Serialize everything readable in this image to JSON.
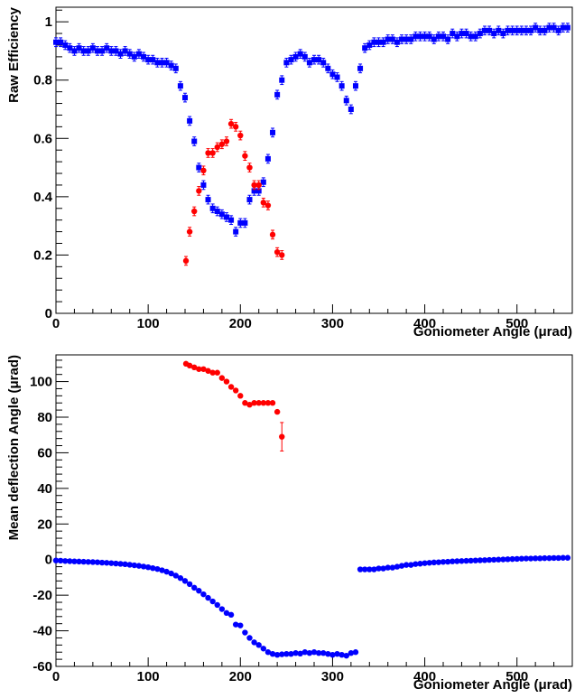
{
  "chart_data": [
    {
      "type": "scatter",
      "xlabel": "Goniometer Angle (μrad)",
      "ylabel": "Raw Efficiency",
      "xlim": [
        0,
        560
      ],
      "ylim": [
        0,
        1.05
      ],
      "xticks": [
        0,
        100,
        200,
        300,
        400,
        500
      ],
      "yticks": [
        0,
        0.2,
        0.4,
        0.6,
        0.8,
        1
      ],
      "ytick_labels": [
        "0",
        "0.2",
        "0.4",
        "0.6",
        "0.8",
        "1"
      ],
      "series": [
        {
          "color": "#0000ff",
          "marker": "square",
          "error_bar": 0.015,
          "x": [
            0,
            5,
            10,
            15,
            20,
            25,
            30,
            35,
            40,
            45,
            50,
            55,
            60,
            65,
            70,
            75,
            80,
            85,
            90,
            95,
            100,
            105,
            110,
            115,
            120,
            125,
            130,
            135,
            140,
            145,
            150,
            155,
            160,
            165,
            170,
            175,
            180,
            185,
            190,
            195,
            200,
            205,
            210,
            215,
            220,
            225,
            230,
            235,
            240,
            245,
            250,
            255,
            260,
            265,
            270,
            275,
            280,
            285,
            290,
            295,
            300,
            305,
            310,
            315,
            320,
            325,
            330,
            335,
            340,
            345,
            350,
            355,
            360,
            365,
            370,
            375,
            380,
            385,
            390,
            395,
            400,
            405,
            410,
            415,
            420,
            425,
            430,
            435,
            440,
            445,
            450,
            455,
            460,
            465,
            470,
            475,
            480,
            485,
            490,
            495,
            500,
            505,
            510,
            515,
            520,
            525,
            530,
            535,
            540,
            545,
            550,
            555
          ],
          "y": [
            0.93,
            0.93,
            0.92,
            0.91,
            0.9,
            0.91,
            0.9,
            0.9,
            0.91,
            0.9,
            0.9,
            0.91,
            0.9,
            0.9,
            0.89,
            0.9,
            0.89,
            0.88,
            0.89,
            0.88,
            0.87,
            0.87,
            0.86,
            0.86,
            0.86,
            0.85,
            0.84,
            0.78,
            0.74,
            0.66,
            0.59,
            0.5,
            0.44,
            0.39,
            0.36,
            0.35,
            0.34,
            0.33,
            0.32,
            0.28,
            0.31,
            0.31,
            0.39,
            0.42,
            0.42,
            0.45,
            0.53,
            0.62,
            0.75,
            0.8,
            0.86,
            0.87,
            0.88,
            0.89,
            0.88,
            0.86,
            0.87,
            0.87,
            0.86,
            0.84,
            0.82,
            0.81,
            0.78,
            0.73,
            0.7,
            0.78,
            0.84,
            0.91,
            0.92,
            0.93,
            0.93,
            0.93,
            0.94,
            0.94,
            0.93,
            0.94,
            0.94,
            0.94,
            0.95,
            0.95,
            0.95,
            0.95,
            0.94,
            0.95,
            0.95,
            0.94,
            0.96,
            0.95,
            0.96,
            0.96,
            0.95,
            0.95,
            0.96,
            0.97,
            0.97,
            0.96,
            0.97,
            0.96,
            0.97,
            0.97,
            0.97,
            0.97,
            0.97,
            0.97,
            0.98,
            0.97,
            0.97,
            0.98,
            0.98,
            0.97,
            0.98,
            0.98
          ]
        },
        {
          "color": "#ff0000",
          "marker": "circle",
          "error_bar": 0.015,
          "x": [
            141,
            145,
            150,
            155,
            160,
            165,
            170,
            175,
            180,
            185,
            190,
            195,
            200,
            205,
            210,
            215,
            220,
            225,
            230,
            235,
            240,
            245
          ],
          "y": [
            0.18,
            0.28,
            0.35,
            0.42,
            0.49,
            0.55,
            0.55,
            0.57,
            0.58,
            0.59,
            0.65,
            0.64,
            0.61,
            0.54,
            0.5,
            0.44,
            0.44,
            0.38,
            0.37,
            0.27,
            0.21,
            0.2
          ]
        }
      ]
    },
    {
      "type": "scatter",
      "xlabel": "Goniometer Angle (μrad)",
      "ylabel": "Mean deflection Angle (μrad)",
      "xlim": [
        0,
        560
      ],
      "ylim": [
        -60,
        115
      ],
      "xticks": [
        0,
        100,
        200,
        300,
        400,
        500
      ],
      "yticks": [
        -60,
        -40,
        -20,
        0,
        20,
        40,
        60,
        80,
        100
      ],
      "ytick_labels": [
        "-60",
        "-40",
        "-20",
        "0",
        "20",
        "40",
        "60",
        "80",
        "100"
      ],
      "series": [
        {
          "color": "#0000ff",
          "marker": "circle",
          "x": [
            0,
            5,
            10,
            15,
            20,
            25,
            30,
            35,
            40,
            45,
            50,
            55,
            60,
            65,
            70,
            75,
            80,
            85,
            90,
            95,
            100,
            105,
            110,
            115,
            120,
            125,
            130,
            135,
            140,
            145,
            150,
            155,
            160,
            165,
            170,
            175,
            180,
            185,
            190,
            195,
            200,
            205,
            210,
            215,
            220,
            225,
            230,
            235,
            240,
            245,
            250,
            255,
            260,
            265,
            270,
            275,
            280,
            285,
            290,
            295,
            300,
            305,
            310,
            315,
            320,
            325,
            330,
            335,
            340,
            345,
            350,
            355,
            360,
            365,
            370,
            375,
            380,
            385,
            390,
            395,
            400,
            405,
            410,
            415,
            420,
            425,
            430,
            435,
            440,
            445,
            450,
            455,
            460,
            465,
            470,
            475,
            480,
            485,
            490,
            495,
            500,
            505,
            510,
            515,
            520,
            525,
            530,
            535,
            540,
            545,
            550,
            555
          ],
          "y": [
            -0.5,
            -0.6,
            -0.8,
            -0.9,
            -1.0,
            -1.1,
            -1.2,
            -1.3,
            -1.4,
            -1.5,
            -1.7,
            -1.8,
            -2.0,
            -2.2,
            -2.4,
            -2.6,
            -2.9,
            -3.2,
            -3.5,
            -3.9,
            -4.3,
            -4.8,
            -5.3,
            -6.0,
            -6.8,
            -7.8,
            -9.0,
            -10.4,
            -12.0,
            -13.8,
            -15.8,
            -17.5,
            -19.5,
            -21.5,
            -23.5,
            -25.5,
            -27.8,
            -30.0,
            -31.0,
            -36.5,
            -37.0,
            -41.0,
            -44.0,
            -46.5,
            -48.0,
            -50.0,
            -52.0,
            -53.0,
            -53.5,
            -53.2,
            -53.0,
            -53.0,
            -52.5,
            -52.8,
            -52.0,
            -52.5,
            -52.0,
            -52.5,
            -52.5,
            -53.0,
            -53.5,
            -53.0,
            -53.5,
            -54.0,
            -52.5,
            -52.0,
            -5.5,
            -5.5,
            -5.5,
            -5.5,
            -5.0,
            -5.0,
            -4.5,
            -4.5,
            -4.0,
            -3.5,
            -3.0,
            -3.0,
            -2.5,
            -2.3,
            -2.0,
            -1.8,
            -1.6,
            -1.5,
            -1.3,
            -1.2,
            -1.0,
            -0.9,
            -0.8,
            -0.7,
            -0.6,
            -0.5,
            -0.4,
            -0.3,
            -0.2,
            -0.1,
            0.0,
            0.1,
            0.2,
            0.3,
            0.4,
            0.5,
            0.6,
            0.6,
            0.7,
            0.7,
            0.8,
            0.8,
            0.9,
            0.9,
            1.0,
            1.0
          ]
        },
        {
          "color": "#ff0000",
          "marker": "circle",
          "x": [
            141,
            145,
            150,
            155,
            160,
            165,
            170,
            175,
            180,
            185,
            190,
            195,
            200,
            205,
            210,
            215,
            220,
            225,
            230,
            235,
            240,
            245
          ],
          "y": [
            110,
            109,
            108,
            107,
            107,
            106,
            105,
            105,
            102,
            100,
            97,
            95,
            92,
            88,
            87,
            88,
            88,
            88,
            88,
            88,
            83,
            69
          ],
          "err": [
            0,
            0,
            0,
            0,
            0,
            0,
            0,
            0,
            0,
            0,
            0,
            0,
            0,
            0,
            0,
            0,
            0,
            0,
            0,
            0,
            0,
            8
          ]
        }
      ]
    }
  ]
}
